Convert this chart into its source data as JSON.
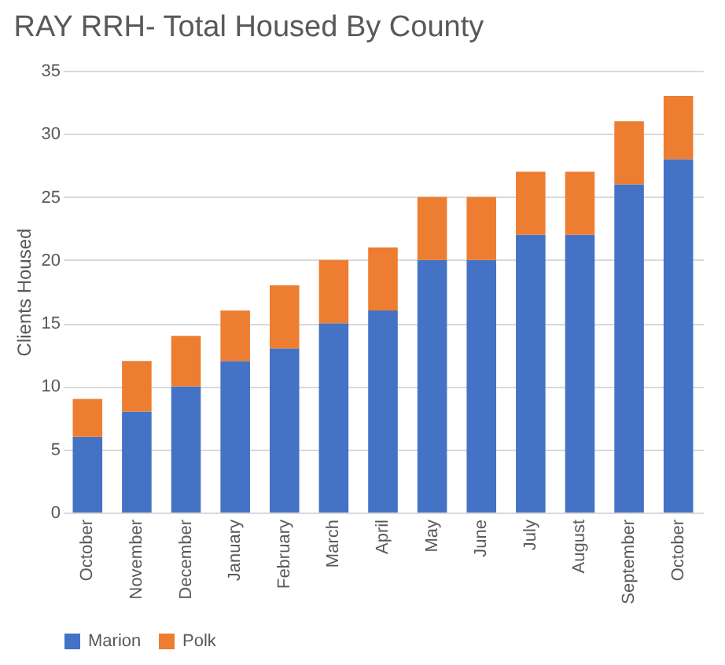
{
  "chart_data": {
    "type": "bar",
    "title": "RAY RRH- Total Housed By County",
    "ylabel": "Clients Housed",
    "categories": [
      "October",
      "November",
      "December",
      "January",
      "February",
      "March",
      "April",
      "May",
      "June",
      "July",
      "August",
      "September",
      "October"
    ],
    "stacked": true,
    "ylim": [
      0,
      35
    ],
    "yticks": [
      0,
      5,
      10,
      15,
      20,
      25,
      30,
      35
    ],
    "grid": "y",
    "legend": "bottom",
    "series": [
      {
        "name": "Marion",
        "color": "#4472c4",
        "values": [
          6,
          8,
          10,
          12,
          13,
          15,
          16,
          20,
          20,
          22,
          22,
          26,
          28
        ]
      },
      {
        "name": "Polk",
        "color": "#ed7d31",
        "values": [
          3,
          4,
          4,
          4,
          5,
          5,
          5,
          5,
          5,
          5,
          5,
          5,
          5
        ]
      }
    ]
  }
}
